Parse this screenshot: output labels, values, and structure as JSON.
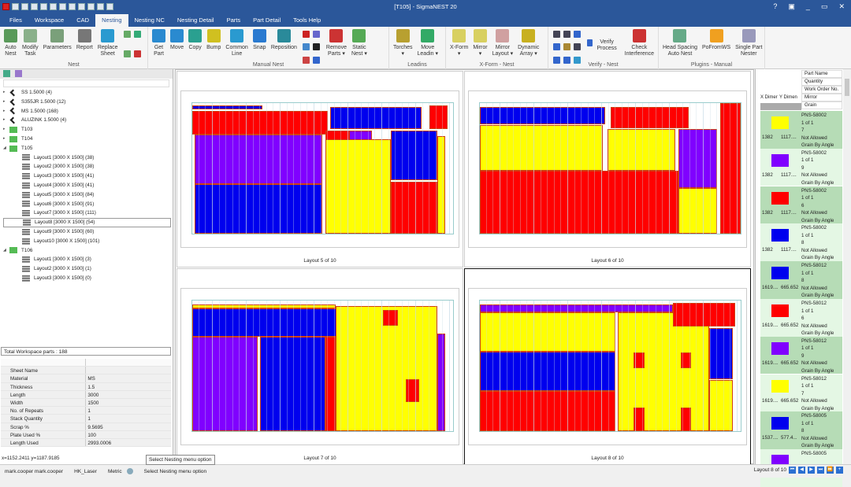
{
  "window": {
    "title": "[T105] - SigmaNEST 20",
    "help": "?",
    "restore_icon": "▣",
    "minimize": "_",
    "maximize": "▭",
    "close": "✕"
  },
  "tabs": [
    {
      "label": "Files"
    },
    {
      "label": "Workspace"
    },
    {
      "label": "CAD"
    },
    {
      "label": "Nesting",
      "active": true
    },
    {
      "label": "Nesting NC"
    },
    {
      "label": "Nesting Detail"
    },
    {
      "label": "Parts"
    },
    {
      "label": "Part Detail"
    },
    {
      "label": "Tools Help"
    }
  ],
  "ribbon": {
    "groups": [
      {
        "label": "Nest",
        "buttons": [
          {
            "label": "Auto\nNest",
            "color": "#5a9a5a"
          },
          {
            "label": "Modify\nTask",
            "color": "#8ab08a"
          },
          {
            "label": "Parameters",
            "color": "#7aa07a"
          },
          {
            "label": "Report",
            "color": "#777"
          },
          {
            "label": "Replace\nSheet",
            "color": "#2a9ad0"
          }
        ],
        "small": [
          "#6a6",
          "#3a7",
          "#6a6",
          "#c33"
        ]
      },
      {
        "label": "Manual Nest",
        "buttons": [
          {
            "label": "Get\nPart",
            "color": "#2a8ad0"
          },
          {
            "label": "Move",
            "color": "#2a8ad0"
          },
          {
            "label": "Copy",
            "color": "#2aa090"
          },
          {
            "label": "Bump",
            "color": "#d0c020"
          },
          {
            "label": "Common\nLine",
            "color": "#2a9ad0"
          },
          {
            "label": "Snap",
            "color": "#2a7ad0"
          },
          {
            "label": "Reposition",
            "color": "#2a8a9a"
          }
        ],
        "small": [
          "#c22",
          "#66c",
          "#48c",
          "#222",
          "#c44",
          "#36c"
        ],
        "buttons2": [
          {
            "label": "Remove\nParts ▾",
            "color": "#c33"
          },
          {
            "label": "Static\nNest ▾",
            "color": "#5a5"
          }
        ]
      },
      {
        "label": "Leadins",
        "buttons": [
          {
            "label": "Torches\n▾",
            "color": "#b8a030"
          },
          {
            "label": "Move\nLeadin ▾",
            "color": "#3a6"
          }
        ]
      },
      {
        "label": "X-Form - Nest",
        "buttons": [
          {
            "label": "X-Form\n▾",
            "color": "#d8d060"
          },
          {
            "label": "Mirror\n▾",
            "color": "#d8d060"
          },
          {
            "label": "Mirror\nLayout ▾",
            "color": "#d0a0a0"
          },
          {
            "label": "Dynamic\nArray ▾",
            "color": "#c8b020"
          }
        ]
      },
      {
        "label": "Verify - Nest",
        "small": [
          "#445",
          "#445",
          "#36c",
          "#36c",
          "#a83",
          "#445",
          "#36c",
          "#36c",
          "#39c"
        ],
        "verify_label": "Verify Process",
        "buttons": [
          {
            "label": "Check\nInterference",
            "color": "#c33"
          }
        ]
      },
      {
        "label": "Plugins - Manual",
        "buttons": [
          {
            "label": "Head Spacing\nAuto Nest",
            "color": "#6a8"
          },
          {
            "label": "PoFromWS",
            "color": "#f0a020"
          },
          {
            "label": "Single Part\nNester",
            "color": "#9999bb"
          }
        ]
      }
    ]
  },
  "tree": [
    {
      "label": "SS 1.5000 (4)",
      "type": "material"
    },
    {
      "label": "S355JR 1.5000 (12)",
      "type": "material"
    },
    {
      "label": "MS 1.5000 (168)",
      "type": "material"
    },
    {
      "label": "ALUZINK 1.5000 (4)",
      "type": "material"
    },
    {
      "label": "T103",
      "type": "task"
    },
    {
      "label": "T104",
      "type": "task"
    },
    {
      "label": "T105",
      "type": "task",
      "expanded": true
    },
    {
      "label": "Layout1 [3000 X 1500]  (38)",
      "type": "layout"
    },
    {
      "label": "Layout2 [3000 X 1500]  (38)",
      "type": "layout"
    },
    {
      "label": "Layout3 [3000 X 1500]  (41)",
      "type": "layout"
    },
    {
      "label": "Layout4 [3000 X 1500]  (41)",
      "type": "layout"
    },
    {
      "label": "Layout5 [3000 X 1500]  (84)",
      "type": "layout"
    },
    {
      "label": "Layout6 [3000 X 1500]  (91)",
      "type": "layout"
    },
    {
      "label": "Layout7 [3000 X 1500]  (111)",
      "type": "layout"
    },
    {
      "label": "Layout8 [3000 X 1500]  (54)",
      "type": "layout",
      "selected": true
    },
    {
      "label": "Layout9 [3000 X 1500]  (60)",
      "type": "layout"
    },
    {
      "label": "Layout10 [3000 X 1500]  (101)",
      "type": "layout"
    },
    {
      "label": "T106",
      "type": "task",
      "expanded": true
    },
    {
      "label": "Layout1 [3000 X 1500]  (3)",
      "type": "layout"
    },
    {
      "label": "Layout2 [3000 X 1500]  (1)",
      "type": "layout"
    },
    {
      "label": "Layout3 [3000 X 1500]  (0)",
      "type": "layout"
    }
  ],
  "total_parts": "Total Workspace parts : 188",
  "properties": [
    [
      "Sheet Name",
      ""
    ],
    [
      "Material",
      "MS"
    ],
    [
      "Thickness",
      "1.5"
    ],
    [
      "Length",
      "3000"
    ],
    [
      "Width",
      "1500"
    ],
    [
      "No. of Repeats",
      "1"
    ],
    [
      "Stack Quantity",
      "1"
    ],
    [
      "Scrap %",
      "9.5695"
    ],
    [
      "Plate Used %",
      "100"
    ],
    [
      "Length Used",
      "2993.0006"
    ]
  ],
  "coords": "x=1152.2411 y=1187.9185",
  "tooltip": "Select Nesting menu option",
  "layouts": [
    {
      "label": "Layout 5 of 10"
    },
    {
      "label": "Layout 6 of 10"
    },
    {
      "label": "Layout 7 of 10"
    },
    {
      "label": "Layout 8 of 10",
      "active": true
    }
  ],
  "part_colors": {
    "red": "#ff0000",
    "blue": "#0000ee",
    "purple": "#8000ff",
    "yellow": "#ffff00"
  },
  "parts_grid": {
    "headers": [
      "Part Name",
      "Quantity",
      "Work Order No.",
      "Mirror",
      "Grain"
    ],
    "x_header": "X Dimer",
    "y_header": "Y Dimen",
    "rows": [
      {
        "color": "#ffff00",
        "x": "1382",
        "y": "1117....",
        "name": "PNS-58002",
        "qty": "1 of 1",
        "wo": "7",
        "mirror": "Not Allowed",
        "grain": "Grain By Angle"
      },
      {
        "color": "#8000ff",
        "x": "1382",
        "y": "1117....",
        "name": "PNS-58002",
        "qty": "1 of 1",
        "wo": "9",
        "mirror": "Not Allowed",
        "grain": "Grain By Angle"
      },
      {
        "color": "#ff0000",
        "x": "1382",
        "y": "1117....",
        "name": "PNS-58002",
        "qty": "1 of 1",
        "wo": "6",
        "mirror": "Not Allowed",
        "grain": "Grain By Angle"
      },
      {
        "color": "#0000ee",
        "x": "1382",
        "y": "1117....",
        "name": "PNS-58002",
        "qty": "1 of 1",
        "wo": "8",
        "mirror": "Not Allowed",
        "grain": "Grain By Angle"
      },
      {
        "color": "#0000ee",
        "x": "1619....",
        "y": "665.652",
        "name": "PNS-58012",
        "qty": "1 of 1",
        "wo": "8",
        "mirror": "Not Allowed",
        "grain": "Grain By Angle"
      },
      {
        "color": "#ff0000",
        "x": "1619....",
        "y": "665.652",
        "name": "PNS-58012",
        "qty": "1 of 1",
        "wo": "6",
        "mirror": "Not Allowed",
        "grain": "Grain By Angle"
      },
      {
        "color": "#8000ff",
        "x": "1619....",
        "y": "665.652",
        "name": "PNS-58012",
        "qty": "1 of 1",
        "wo": "9",
        "mirror": "Not Allowed",
        "grain": "Grain By Angle"
      },
      {
        "color": "#ffff00",
        "x": "1619....",
        "y": "665.652",
        "name": "PNS-58012",
        "qty": "1 of 1",
        "wo": "7",
        "mirror": "Not Allowed",
        "grain": "Grain By Angle"
      },
      {
        "color": "#0000ee",
        "x": "1537....",
        "y": "577.4...",
        "name": "PNS-58005",
        "qty": "1 of 1",
        "wo": "8",
        "mirror": "Not Allowed",
        "grain": "Grain By Angle"
      },
      {
        "color": "#8000ff",
        "x": "",
        "y": "",
        "name": "PNS-58005",
        "qty": "",
        "wo": "",
        "mirror": "",
        "grain": ""
      }
    ]
  },
  "status": {
    "user": "mark.cooper mark.cooper",
    "machine": "HK_Laser",
    "units": "Metric",
    "message": "Select Nesting menu option",
    "layout_nav": "Layout 8 of 10"
  }
}
